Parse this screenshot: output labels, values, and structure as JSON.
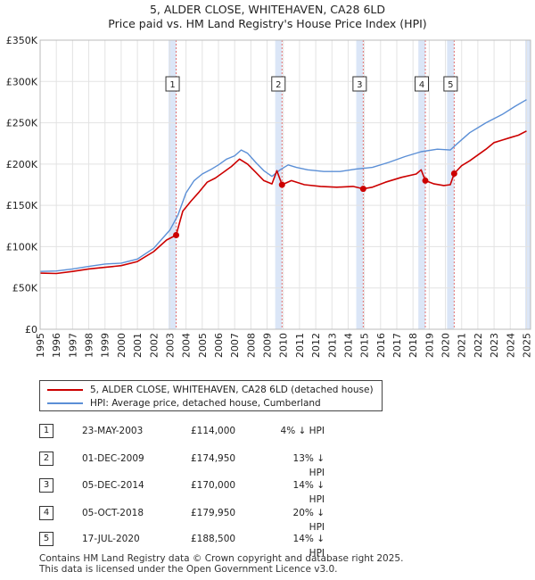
{
  "title_line1": "5, ALDER CLOSE, WHITEHAVEN, CA28 6LD",
  "title_line2": "Price paid vs. HM Land Registry's House Price Index (HPI)",
  "colors": {
    "property": "#cc0000",
    "hpi": "#5b8fd6",
    "shade": "#dbe6f7",
    "vline": "#e07070"
  },
  "chart_data": {
    "type": "line",
    "title": "5, ALDER CLOSE, WHITEHAVEN, CA28 6LD — Price paid vs. HM Land Registry's House Price Index (HPI)",
    "xlabel": "",
    "ylabel": "",
    "xlim": [
      1995,
      2025.25
    ],
    "ylim": [
      0,
      350000
    ],
    "y_ticks": [
      0,
      50000,
      100000,
      150000,
      200000,
      250000,
      300000,
      350000
    ],
    "y_tick_labels": [
      "£0",
      "£50K",
      "£100K",
      "£150K",
      "£200K",
      "£250K",
      "£300K",
      "£350K"
    ],
    "x_ticks": [
      1995,
      1996,
      1997,
      1998,
      1999,
      2000,
      2001,
      2002,
      2003,
      2004,
      2005,
      2006,
      2007,
      2008,
      2009,
      2010,
      2011,
      2012,
      2013,
      2014,
      2015,
      2016,
      2017,
      2018,
      2019,
      2020,
      2021,
      2022,
      2023,
      2024,
      2025
    ],
    "grid": true,
    "series": [
      {
        "name": "HPI: Average price, detached house, Cumberland",
        "color": "#5b8fd6",
        "points": [
          [
            1995,
            70000
          ],
          [
            1996,
            70500
          ],
          [
            1997,
            73000
          ],
          [
            1998,
            76000
          ],
          [
            1999,
            79000
          ],
          [
            2000,
            80000
          ],
          [
            2001,
            85000
          ],
          [
            2002,
            98000
          ],
          [
            2003,
            120000
          ],
          [
            2003.5,
            138000
          ],
          [
            2004,
            165000
          ],
          [
            2004.5,
            180000
          ],
          [
            2005,
            188000
          ],
          [
            2005.5,
            193000
          ],
          [
            2006,
            199000
          ],
          [
            2006.5,
            206000
          ],
          [
            2007,
            210000
          ],
          [
            2007.4,
            217000
          ],
          [
            2007.8,
            213000
          ],
          [
            2008.3,
            202000
          ],
          [
            2008.8,
            192000
          ],
          [
            2009.3,
            185000
          ],
          [
            2009.8,
            193000
          ],
          [
            2010.3,
            199000
          ],
          [
            2010.8,
            196000
          ],
          [
            2011.5,
            193000
          ],
          [
            2012.5,
            191000
          ],
          [
            2013.5,
            191000
          ],
          [
            2014.5,
            194000
          ],
          [
            2015.5,
            196000
          ],
          [
            2016.5,
            202000
          ],
          [
            2017.5,
            209000
          ],
          [
            2018.5,
            215000
          ],
          [
            2019.5,
            218000
          ],
          [
            2020.3,
            217000
          ],
          [
            2020.8,
            226000
          ],
          [
            2021.5,
            238000
          ],
          [
            2022.5,
            250000
          ],
          [
            2023.5,
            260000
          ],
          [
            2024.3,
            270000
          ],
          [
            2025,
            278000
          ]
        ]
      },
      {
        "name": "5, ALDER CLOSE, WHITEHAVEN, CA28 6LD (detached house)",
        "color": "#cc0000",
        "points": [
          [
            1995,
            68000
          ],
          [
            1996,
            67500
          ],
          [
            1997,
            70000
          ],
          [
            1998,
            73000
          ],
          [
            1999,
            75000
          ],
          [
            2000,
            77000
          ],
          [
            2001,
            82000
          ],
          [
            2002,
            94000
          ],
          [
            2002.8,
            108000
          ],
          [
            2003.39,
            114000
          ],
          [
            2003.8,
            143000
          ],
          [
            2004.3,
            155000
          ],
          [
            2004.8,
            166000
          ],
          [
            2005.3,
            178000
          ],
          [
            2005.8,
            183000
          ],
          [
            2006.3,
            190000
          ],
          [
            2006.8,
            197000
          ],
          [
            2007.3,
            206000
          ],
          [
            2007.8,
            200000
          ],
          [
            2008.3,
            190000
          ],
          [
            2008.8,
            180000
          ],
          [
            2009.3,
            176000
          ],
          [
            2009.6,
            192000
          ],
          [
            2009.92,
            174950
          ],
          [
            2010.5,
            180000
          ],
          [
            2011.3,
            175000
          ],
          [
            2012.3,
            173000
          ],
          [
            2013.3,
            172000
          ],
          [
            2014.3,
            173000
          ],
          [
            2014.93,
            170000
          ],
          [
            2015.5,
            172000
          ],
          [
            2016.3,
            178000
          ],
          [
            2017.3,
            184000
          ],
          [
            2018.2,
            188000
          ],
          [
            2018.5,
            193000
          ],
          [
            2018.76,
            179950
          ],
          [
            2019.3,
            176000
          ],
          [
            2019.9,
            174000
          ],
          [
            2020.3,
            175000
          ],
          [
            2020.54,
            188500
          ],
          [
            2021,
            198000
          ],
          [
            2021.5,
            204000
          ],
          [
            2022,
            211000
          ],
          [
            2022.5,
            218000
          ],
          [
            2023,
            226000
          ],
          [
            2023.5,
            229000
          ],
          [
            2024,
            232000
          ],
          [
            2024.5,
            235000
          ],
          [
            2025,
            240000
          ]
        ]
      }
    ],
    "sales": [
      {
        "num": "1",
        "date": "23-MAY-2003",
        "x": 2003.39,
        "price": 114000,
        "price_label": "£114,000",
        "hpi": "4% ↓ HPI"
      },
      {
        "num": "2",
        "date": "01-DEC-2009",
        "x": 2009.92,
        "price": 174950,
        "price_label": "£174,950",
        "hpi": "13% ↓ HPI"
      },
      {
        "num": "3",
        "date": "05-DEC-2014",
        "x": 2014.93,
        "price": 170000,
        "price_label": "£170,000",
        "hpi": "14% ↓ HPI"
      },
      {
        "num": "4",
        "date": "05-OCT-2018",
        "x": 2018.76,
        "price": 179950,
        "price_label": "£179,950",
        "hpi": "20% ↓ HPI"
      },
      {
        "num": "5",
        "date": "17-JUL-2020",
        "x": 2020.54,
        "price": 188500,
        "price_label": "£188,500",
        "hpi": "14% ↓ HPI"
      }
    ],
    "shaded_ranges": [
      [
        2002.92,
        2003.39
      ],
      [
        2009.5,
        2009.92
      ],
      [
        2014.5,
        2014.93
      ],
      [
        2018.33,
        2018.76
      ],
      [
        2020.1,
        2020.54
      ],
      [
        2024.92,
        2025.25
      ]
    ]
  },
  "legend": {
    "property_label": "5, ALDER CLOSE, WHITEHAVEN, CA28 6LD (detached house)",
    "hpi_label": "HPI: Average price, detached house, Cumberland"
  },
  "footer": {
    "line1": "Contains HM Land Registry data © Crown copyright and database right 2025.",
    "line2": "This data is licensed under the Open Government Licence v3.0."
  }
}
